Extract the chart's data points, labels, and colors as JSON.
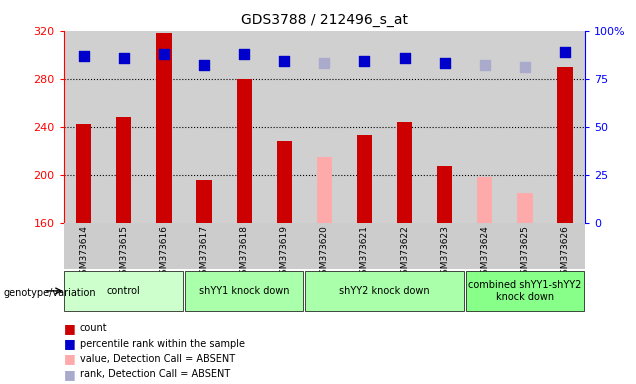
{
  "title": "GDS3788 / 212496_s_at",
  "samples": [
    "GSM373614",
    "GSM373615",
    "GSM373616",
    "GSM373617",
    "GSM373618",
    "GSM373619",
    "GSM373620",
    "GSM373621",
    "GSM373622",
    "GSM373623",
    "GSM373624",
    "GSM373625",
    "GSM373626"
  ],
  "bar_values": [
    242,
    248,
    318,
    196,
    280,
    228,
    215,
    233,
    244,
    207,
    198,
    185,
    290
  ],
  "bar_absent": [
    false,
    false,
    false,
    false,
    false,
    false,
    true,
    false,
    false,
    false,
    true,
    true,
    false
  ],
  "percentile_values": [
    87,
    86,
    88,
    82,
    88,
    84,
    83,
    84,
    86,
    83,
    82,
    81,
    89
  ],
  "percentile_absent": [
    false,
    false,
    false,
    false,
    false,
    false,
    true,
    false,
    false,
    false,
    true,
    true,
    false
  ],
  "ylim_left": [
    160,
    320
  ],
  "ylim_right": [
    0,
    100
  ],
  "yticks_left": [
    160,
    200,
    240,
    280,
    320
  ],
  "yticks_right": [
    0,
    25,
    50,
    75,
    100
  ],
  "ytick_labels_right": [
    "0",
    "25",
    "50",
    "75",
    "100%"
  ],
  "color_bar_present": "#cc0000",
  "color_bar_absent": "#ffaaaa",
  "color_rank_present": "#0000cc",
  "color_rank_absent": "#aaaacc",
  "groups": [
    {
      "label": "control",
      "start": 0,
      "end": 2,
      "color": "#ccffcc"
    },
    {
      "label": "shYY1 knock down",
      "start": 3,
      "end": 5,
      "color": "#aaffaa"
    },
    {
      "label": "shYY2 knock down",
      "start": 6,
      "end": 9,
      "color": "#aaffaa"
    },
    {
      "label": "combined shYY1-shYY2\nknock down",
      "start": 10,
      "end": 12,
      "color": "#88ff88"
    }
  ],
  "group_bg_colors": [
    "#ccffcc",
    "#aaffaa",
    "#aaffaa",
    "#88ff88"
  ],
  "legend_items": [
    {
      "label": "count",
      "color": "#cc0000"
    },
    {
      "label": "percentile rank within the sample",
      "color": "#0000cc"
    },
    {
      "label": "value, Detection Call = ABSENT",
      "color": "#ffaaaa"
    },
    {
      "label": "rank, Detection Call = ABSENT",
      "color": "#aaaacc"
    }
  ]
}
